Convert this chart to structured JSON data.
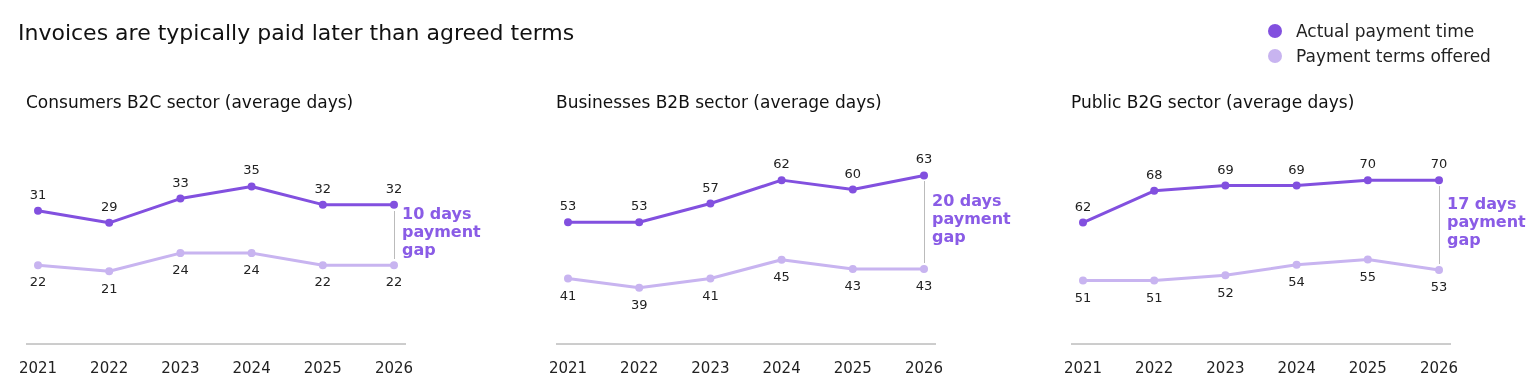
{
  "chart_data": [
    {
      "type": "line",
      "title": "Invoices are typically paid later than agreed terms",
      "subtitle": "Consumers B2C sector (average days)",
      "categories": [
        "2021",
        "2022",
        "2023",
        "2024",
        "2025",
        "2026"
      ],
      "series": [
        {
          "name": "Actual payment time",
          "color": "#8250df",
          "values": [
            31,
            29,
            33,
            35,
            32,
            32
          ]
        },
        {
          "name": "Payment terms offered",
          "color": "#c8b4f0",
          "values": [
            22,
            21,
            24,
            24,
            22,
            22
          ]
        }
      ],
      "data_labels": true,
      "marker": "circle",
      "legend": "top right",
      "annotations": [
        "10 days payment gap"
      ]
    },
    {
      "type": "line",
      "title": "Businesses B2B sector (average days)",
      "categories": [
        "2021",
        "2022",
        "2023",
        "2024",
        "2025",
        "2026"
      ],
      "series": [
        {
          "color": "#8250df",
          "values": [
            53,
            53,
            57,
            62,
            60,
            63
          ]
        },
        {
          "color": "#c8b4f0",
          "values": [
            41,
            39,
            41,
            45,
            43,
            43
          ]
        }
      ],
      "data_labels": true,
      "marker": "circle",
      "annotations": [
        "20 days payment gap"
      ]
    },
    {
      "type": "line",
      "title": "Public B2G sector (average days)",
      "categories": [
        "2021",
        "2022",
        "2023",
        "2024",
        "2025",
        "2026"
      ],
      "series": [
        {
          "color": "#8250df",
          "values": [
            62,
            68,
            69,
            69,
            70,
            70
          ]
        },
        {
          "color": "#c8b4f0",
          "values": [
            51,
            51,
            52,
            54,
            55,
            53
          ]
        }
      ],
      "data_labels": true,
      "marker": "circle",
      "annotations": [
        "17 days payment gap"
      ]
    }
  ]
}
